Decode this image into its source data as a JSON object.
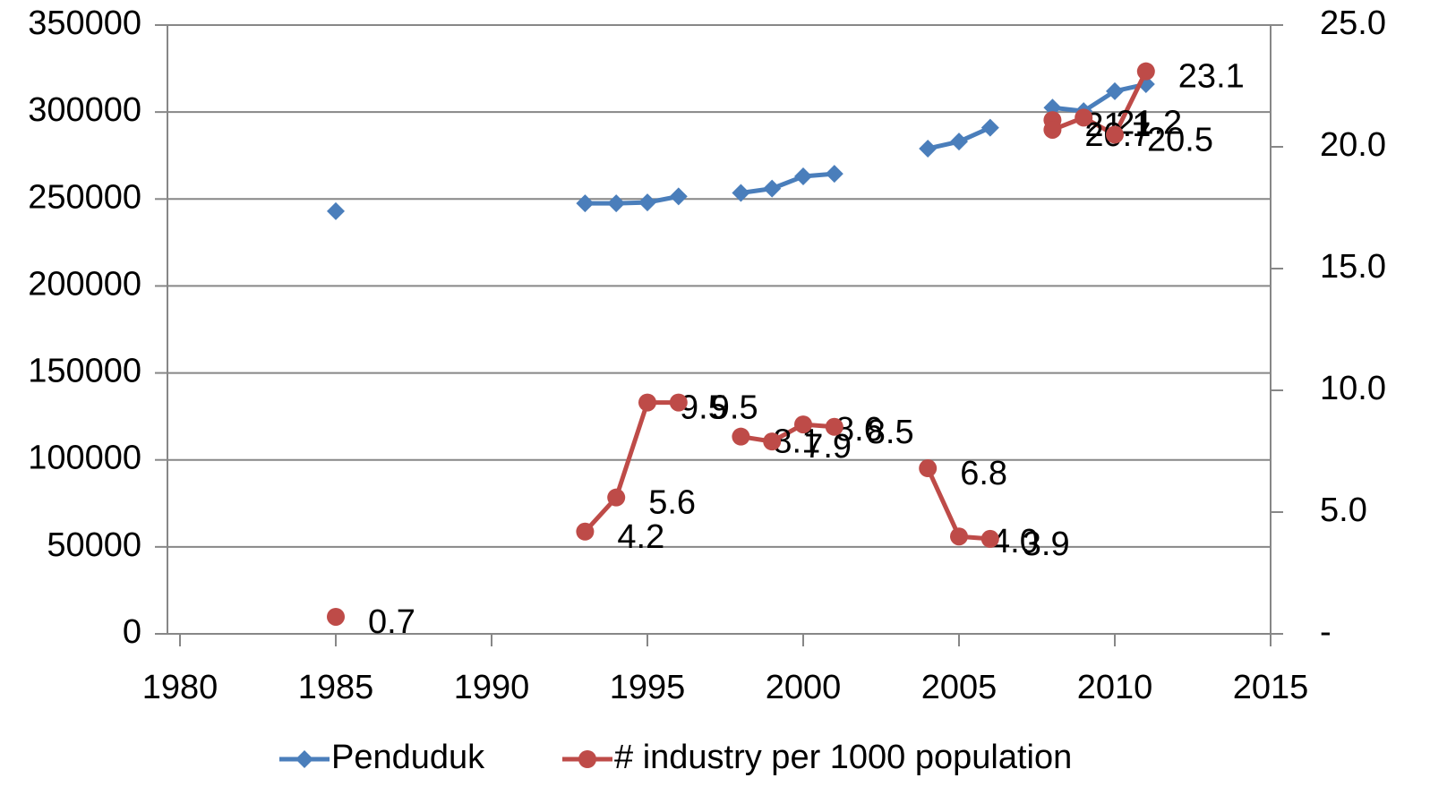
{
  "chart_data": {
    "type": "line",
    "xlim": [
      1980,
      2015
    ],
    "xticks": [
      1980,
      1985,
      1990,
      1995,
      2000,
      2005,
      2010,
      2015
    ],
    "ylim": [
      0,
      350000
    ],
    "yticks": [
      0,
      50000,
      100000,
      150000,
      200000,
      250000,
      300000,
      350000
    ],
    "y2lim": [
      0,
      25
    ],
    "y2ticks": [
      {
        "value": 0,
        "label": "-"
      },
      {
        "value": 5,
        "label": "5.0"
      },
      {
        "value": 10,
        "label": "10.0"
      },
      {
        "value": 15,
        "label": "15.0"
      },
      {
        "value": 20,
        "label": "20.0"
      },
      {
        "value": 25,
        "label": "25.0"
      }
    ],
    "grid": true,
    "legend": "bottom",
    "series": [
      {
        "name": "Penduduk",
        "color": "#4a7ebb",
        "marker": "diamond",
        "x": [
          1985,
          1986,
          1993,
          1994,
          1995,
          1996,
          1997,
          1998,
          1999,
          2000,
          2001,
          2002,
          2004,
          2005,
          2006,
          2007,
          2008,
          2009,
          2010,
          2011
        ],
        "values": [
          243000,
          null,
          247500,
          247500,
          248000,
          251500,
          null,
          253500,
          256000,
          263000,
          264500,
          null,
          279000,
          283000,
          291000,
          null,
          302500,
          300500,
          312000,
          316000
        ]
      },
      {
        "name": "# industry per 1000 population",
        "color": "#be4b48",
        "marker": "circle",
        "axis": "y2",
        "x": [
          1985,
          1986,
          1993,
          1994,
          1995,
          1996,
          1997,
          1998,
          1999,
          2000,
          2001,
          2002,
          2004,
          2005,
          2006,
          2007,
          2008,
          2008,
          2009,
          2010,
          2011
        ],
        "values": [
          0.7,
          null,
          4.2,
          5.6,
          9.5,
          9.5,
          null,
          8.1,
          7.9,
          8.6,
          8.5,
          null,
          6.8,
          4.0,
          3.9,
          null,
          21.1,
          20.7,
          21.2,
          20.5,
          23.1
        ],
        "value_labels": [
          "0.7",
          null,
          "4.2",
          "5.6",
          "9.5",
          "9.5",
          null,
          "8.1",
          "7.9",
          "8.6",
          "8.5",
          null,
          "6.8",
          "4.0",
          "3.9",
          null,
          "21.1",
          "20.7",
          "21.2",
          "20.5",
          "23.1"
        ]
      }
    ]
  }
}
